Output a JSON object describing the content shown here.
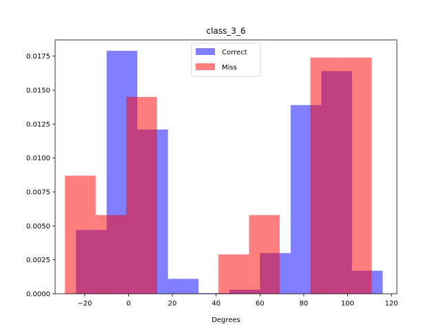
{
  "chart_data": {
    "type": "histogram",
    "title": "class_3_6",
    "xlabel": "Degrees",
    "ylabel": "",
    "xlim": [
      -33.5,
      122.5
    ],
    "ylim": [
      0,
      0.0187
    ],
    "xticks": [
      -20,
      0,
      20,
      40,
      60,
      80,
      100,
      120
    ],
    "xtick_labels": [
      "−20",
      "0",
      "20",
      "40",
      "60",
      "80",
      "100",
      "120"
    ],
    "yticks": [
      0.0,
      0.0025,
      0.005,
      0.0075,
      0.01,
      0.0125,
      0.015,
      0.0175
    ],
    "ytick_labels": [
      "0.0000",
      "0.0025",
      "0.0050",
      "0.0075",
      "0.0100",
      "0.0125",
      "0.0150",
      "0.0175"
    ],
    "grid": false,
    "legend_position": "top-center",
    "series": [
      {
        "name": "Correct",
        "color": "#0000ff",
        "alpha": 0.5,
        "bins": [
          {
            "x0": -24.0,
            "x1": -10.0,
            "y": 0.0047
          },
          {
            "x0": -10.0,
            "x1": 4.0,
            "y": 0.0179
          },
          {
            "x0": 4.0,
            "x1": 18.0,
            "y": 0.0121
          },
          {
            "x0": 18.0,
            "x1": 32.0,
            "y": 0.0011
          },
          {
            "x0": 32.0,
            "x1": 46.0,
            "y": 5e-05
          },
          {
            "x0": 46.0,
            "x1": 60.0,
            "y": 0.0003
          },
          {
            "x0": 60.0,
            "x1": 74.0,
            "y": 0.003
          },
          {
            "x0": 74.0,
            "x1": 88.0,
            "y": 0.0139
          },
          {
            "x0": 88.0,
            "x1": 102.0,
            "y": 0.0164
          },
          {
            "x0": 102.0,
            "x1": 116.0,
            "y": 0.0017
          }
        ]
      },
      {
        "name": "Miss",
        "color": "#ff0000",
        "alpha": 0.5,
        "bins": [
          {
            "x0": -29.0,
            "x1": -15.0,
            "y": 0.0087
          },
          {
            "x0": -15.0,
            "x1": -1.0,
            "y": 0.0058
          },
          {
            "x0": -1.0,
            "x1": 13.0,
            "y": 0.0145
          },
          {
            "x0": 13.0,
            "x1": 27.0,
            "y": 0.0
          },
          {
            "x0": 27.0,
            "x1": 41.0,
            "y": 0.0
          },
          {
            "x0": 41.0,
            "x1": 55.0,
            "y": 0.0029
          },
          {
            "x0": 55.0,
            "x1": 69.0,
            "y": 0.0058
          },
          {
            "x0": 69.0,
            "x1": 83.0,
            "y": 0.0
          },
          {
            "x0": 83.0,
            "x1": 97.0,
            "y": 0.0174
          },
          {
            "x0": 97.0,
            "x1": 111.0,
            "y": 0.0174
          }
        ]
      }
    ]
  }
}
